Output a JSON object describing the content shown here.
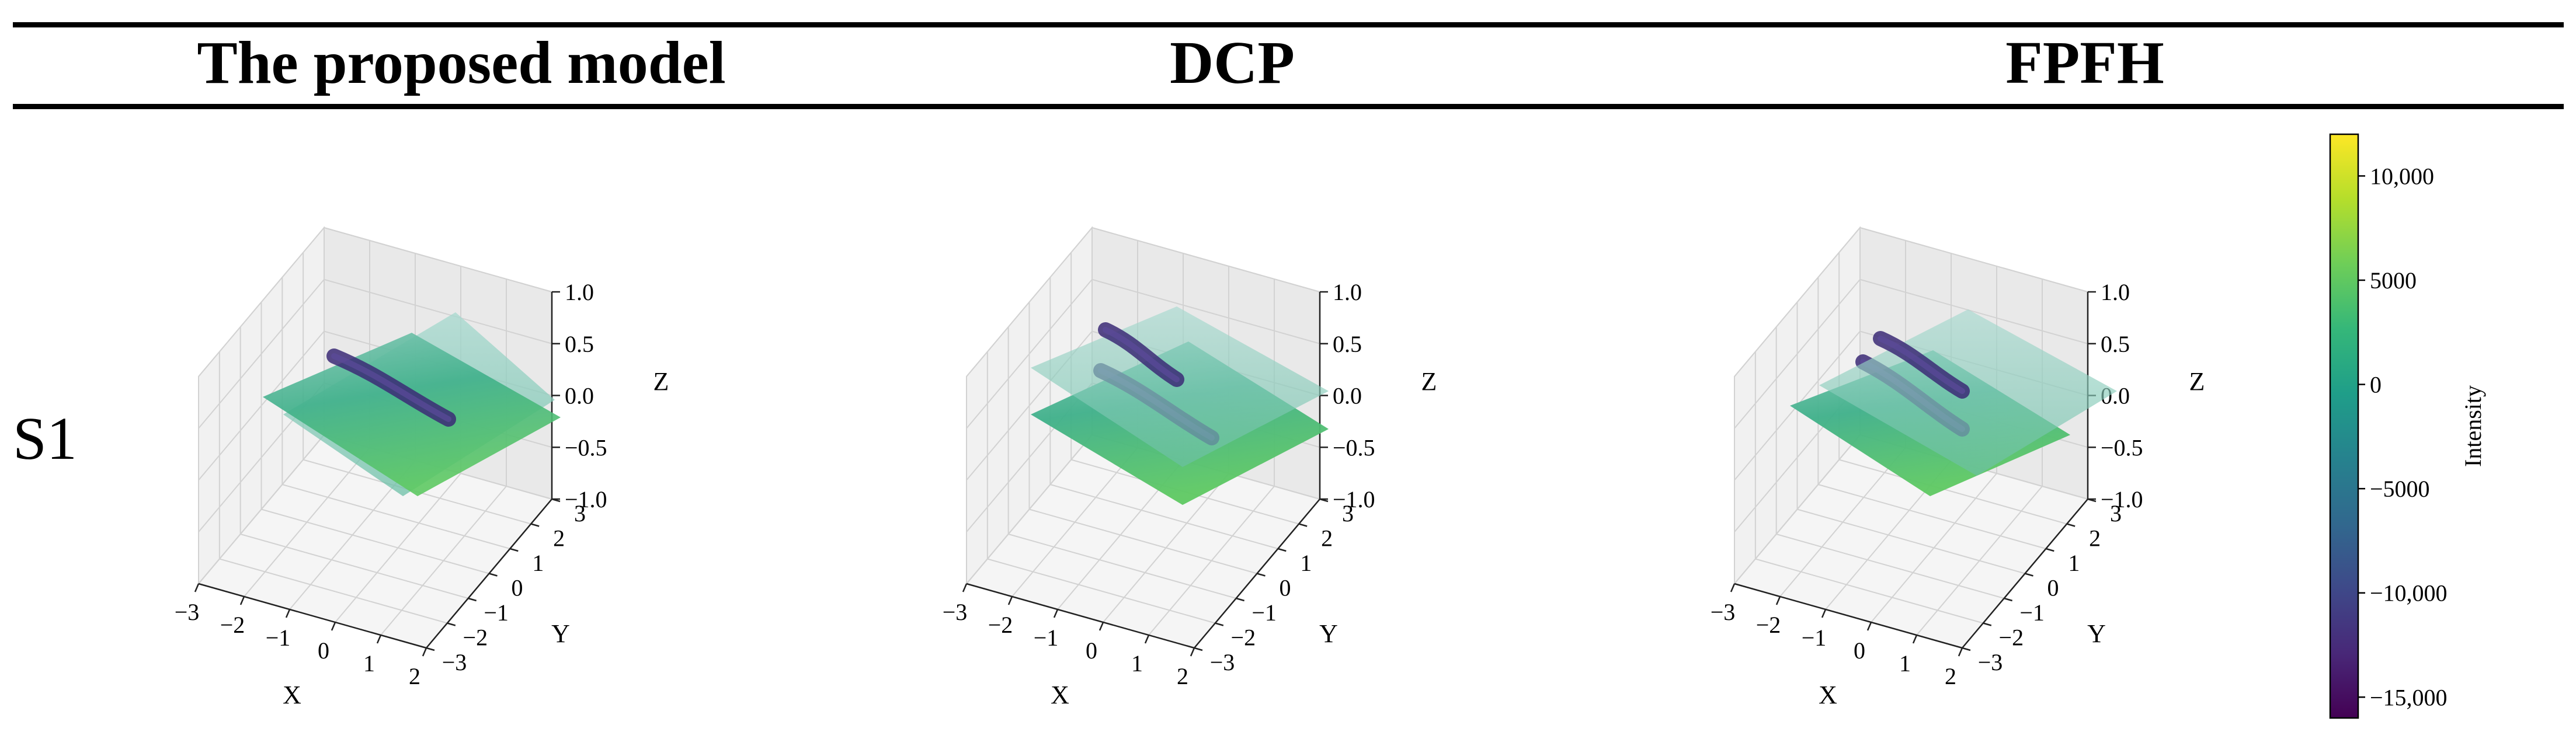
{
  "row_label": "S1",
  "columns": [
    {
      "title": "The proposed model",
      "scene": "aligned"
    },
    {
      "title": "DCP",
      "scene": "offset-z"
    },
    {
      "title": "FPFH",
      "scene": "offset-xy"
    }
  ],
  "chart_data": [
    {
      "type": "scatter",
      "title": "The proposed model",
      "row": "S1",
      "description_visible": "3D point cloud of two overlapping tilted surface patches colored by intensity",
      "xlabel": "X",
      "ylabel": "Y",
      "zlabel": "Z",
      "xlim": [
        -3,
        2
      ],
      "ylim": [
        -3,
        3
      ],
      "zlim": [
        -1.0,
        1.0
      ],
      "x_ticks": [
        "−3",
        "−2",
        "−1",
        "0",
        "1",
        "2"
      ],
      "y_ticks": [
        "−3",
        "−2",
        "−1",
        "0",
        "1",
        "2",
        "3"
      ],
      "z_ticks": [
        "−1.0",
        "−0.5",
        "0.0",
        "0.5",
        "1.0"
      ],
      "grid": true
    },
    {
      "type": "scatter",
      "title": "DCP",
      "row": "S1",
      "xlabel": "X",
      "ylabel": "Y",
      "zlabel": "Z",
      "xlim": [
        -3,
        2
      ],
      "ylim": [
        -3,
        3
      ],
      "zlim": [
        -1.0,
        1.0
      ],
      "x_ticks": [
        "−3",
        "−2",
        "−1",
        "0",
        "1",
        "2"
      ],
      "y_ticks": [
        "−3",
        "−2",
        "−1",
        "0",
        "1",
        "2",
        "3"
      ],
      "z_ticks": [
        "−1.0",
        "−0.5",
        "0.0",
        "0.5",
        "1.0"
      ],
      "grid": true
    },
    {
      "type": "scatter",
      "title": "FPFH",
      "row": "S1",
      "xlabel": "X",
      "ylabel": "Y",
      "zlabel": "Z",
      "xlim": [
        -3,
        2
      ],
      "ylim": [
        -3,
        3
      ],
      "zlim": [
        -1.0,
        1.0
      ],
      "x_ticks": [
        "−3",
        "−2",
        "−1",
        "0",
        "1",
        "2"
      ],
      "y_ticks": [
        "−3",
        "−2",
        "−1",
        "0",
        "1",
        "2",
        "3"
      ],
      "z_ticks": [
        "−1.0",
        "−0.5",
        "0.0",
        "0.5",
        "1.0"
      ],
      "grid": true
    }
  ],
  "colorbar": {
    "label": "Intensity",
    "colormap": "viridis",
    "range": [
      -16000,
      12000
    ],
    "ticks": [
      {
        "value": 10000,
        "label": "10,000"
      },
      {
        "value": 5000,
        "label": "5000"
      },
      {
        "value": 0,
        "label": "0"
      },
      {
        "value": -5000,
        "label": "−5000"
      },
      {
        "value": -10000,
        "label": "−10,000"
      },
      {
        "value": -15000,
        "label": "−15,000"
      }
    ]
  }
}
